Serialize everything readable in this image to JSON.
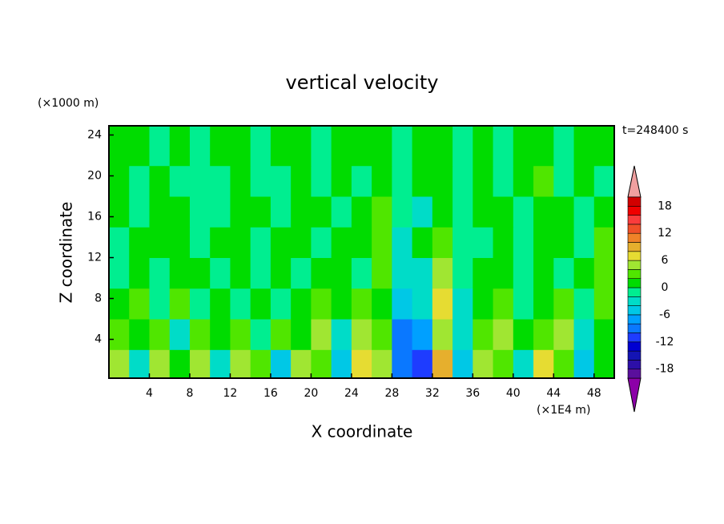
{
  "chart_data": {
    "type": "contour",
    "title": "vertical velocity",
    "x_label": "X coordinate",
    "y_label": "Z coordinate",
    "x_unit": "(×1E4 m)",
    "y_unit": "(×1000 m)",
    "annotation": "t=248400 s",
    "xlim": [
      0,
      50
    ],
    "ylim": [
      0.2,
      24.9
    ],
    "xticks": [
      4,
      8,
      12,
      16,
      20,
      24,
      28,
      32,
      36,
      40,
      44,
      48
    ],
    "yticks": [
      4,
      8,
      12,
      16,
      20,
      24
    ],
    "x": [
      1,
      3,
      5,
      7,
      9,
      11,
      13,
      15,
      17,
      19,
      21,
      23,
      25,
      27,
      29,
      31,
      33,
      35,
      37,
      39,
      41,
      43,
      45,
      47,
      49
    ],
    "y": [
      1.5,
      4.5,
      7.5,
      10.5,
      13.5,
      16.5,
      19.5,
      22.5
    ],
    "z": [
      [
        5,
        -3,
        5,
        1,
        5,
        -3,
        5,
        3,
        -5,
        5,
        3,
        -5,
        7,
        5,
        -9,
        -11,
        9,
        -5,
        5,
        3,
        -3,
        7,
        3,
        -5,
        1
      ],
      [
        3,
        1,
        3,
        -3,
        3,
        1,
        3,
        -1,
        3,
        1,
        5,
        -3,
        5,
        3,
        -9,
        -7,
        5,
        -3,
        3,
        5,
        1,
        3,
        5,
        -3,
        1
      ],
      [
        1,
        3,
        -1,
        3,
        -1,
        1,
        -1,
        1,
        -1,
        1,
        3,
        1,
        3,
        1,
        -5,
        -3,
        7,
        -3,
        1,
        3,
        -1,
        1,
        3,
        -1,
        3
      ],
      [
        -1,
        1,
        -1,
        1,
        1,
        -1,
        1,
        -1,
        1,
        -1,
        1,
        1,
        -1,
        3,
        -3,
        -3,
        5,
        -1,
        1,
        1,
        -1,
        1,
        -1,
        1,
        3
      ],
      [
        -1,
        1,
        1,
        1,
        -1,
        1,
        1,
        -1,
        1,
        1,
        -1,
        1,
        1,
        3,
        -3,
        1,
        3,
        -1,
        -1,
        1,
        -1,
        1,
        1,
        -1,
        3
      ],
      [
        1,
        -1,
        1,
        1,
        -1,
        -1,
        1,
        1,
        -1,
        1,
        1,
        -1,
        1,
        3,
        -1,
        -3,
        1,
        -1,
        1,
        1,
        -1,
        1,
        1,
        -1,
        1
      ],
      [
        1,
        -1,
        1,
        -1,
        -1,
        -1,
        1,
        -1,
        -1,
        1,
        -1,
        1,
        -1,
        1,
        -1,
        1,
        1,
        -1,
        1,
        -1,
        1,
        3,
        -1,
        1,
        -1
      ],
      [
        1,
        1,
        -1,
        1,
        -1,
        1,
        1,
        -1,
        1,
        1,
        -1,
        1,
        1,
        1,
        -1,
        1,
        1,
        -1,
        1,
        -1,
        1,
        1,
        -1,
        1,
        1
      ]
    ],
    "levels": [
      -20,
      -18,
      -16,
      -14,
      -12,
      -10,
      -8,
      -6,
      -4,
      -2,
      0,
      2,
      4,
      6,
      8,
      10,
      12,
      14,
      16,
      18,
      20
    ],
    "colors": [
      "#8c00a8",
      "#5a0f9c",
      "#2d0fa8",
      "#1414b4",
      "#0000d2",
      "#1e3cff",
      "#0a78ff",
      "#00a0ff",
      "#00c8e6",
      "#00dcc8",
      "#00ee90",
      "#00dc00",
      "#50e600",
      "#a0e632",
      "#e6dc32",
      "#e6af2d",
      "#f08228",
      "#f05028",
      "#fa3c3c",
      "#f00000",
      "#d20000",
      "#f0a0a0"
    ],
    "colorbar_ticks": [
      -18,
      -12,
      -6,
      0,
      6,
      12,
      18
    ]
  }
}
